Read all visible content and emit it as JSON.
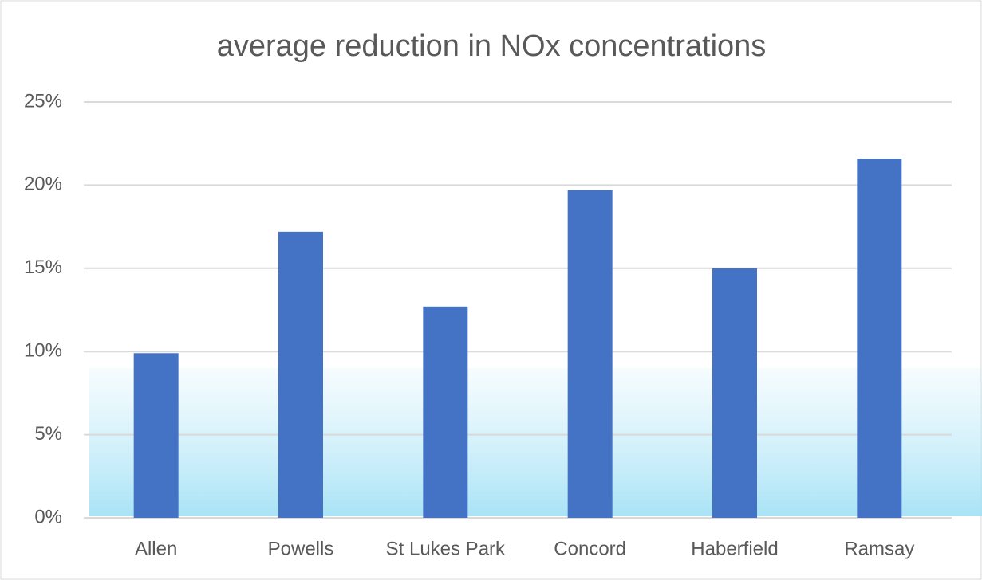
{
  "chart_data": {
    "type": "bar",
    "title": "average reduction in NOx concentrations",
    "categories": [
      "Allen",
      "Powells",
      "St Lukes Park",
      "Concord",
      "Haberfield",
      "Ramsay"
    ],
    "values": [
      9.9,
      17.2,
      12.7,
      19.7,
      15.0,
      21.6
    ],
    "color": "#4472c4",
    "ylim": [
      0,
      25
    ],
    "yticks": [
      {
        "value": 0,
        "label": "0%"
      },
      {
        "value": 5,
        "label": "5%"
      },
      {
        "value": 10,
        "label": "10%"
      },
      {
        "value": 15,
        "label": "15%"
      },
      {
        "value": 20,
        "label": "20%"
      },
      {
        "value": 25,
        "label": "25%"
      }
    ],
    "grid": true
  }
}
